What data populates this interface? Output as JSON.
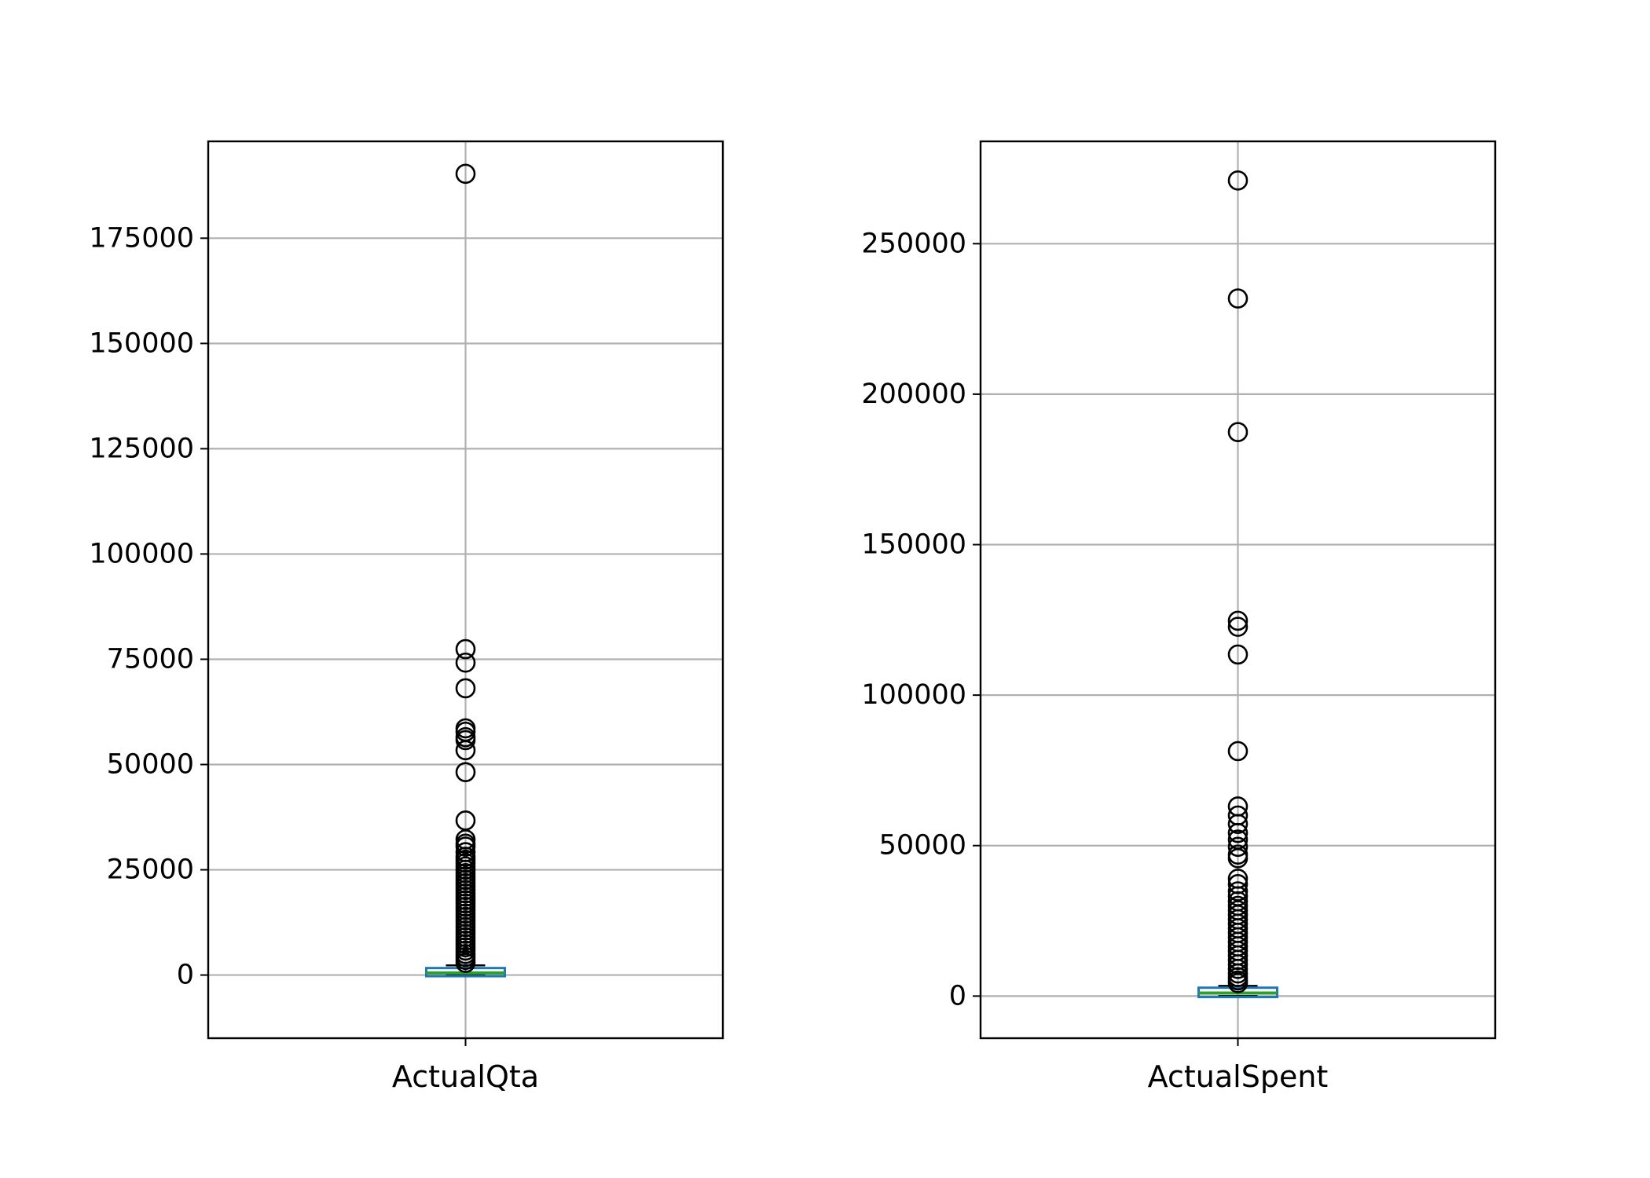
{
  "chart_data": [
    {
      "type": "box",
      "categories": [
        "ActualQta"
      ],
      "ylim": [
        -15000,
        198000
      ],
      "yticks": [
        0,
        25000,
        50000,
        75000,
        100000,
        125000,
        150000,
        175000
      ],
      "yticklabels": [
        "0",
        "25000",
        "50000",
        "75000",
        "100000",
        "125000",
        "150000",
        "175000"
      ],
      "grid": true,
      "box": {
        "min": 0,
        "q1": 100,
        "median": 500,
        "q3": 1100,
        "whisker_high": 2300
      },
      "outliers": [
        190300,
        77400,
        74200,
        68100,
        58600,
        57800,
        56500,
        55800,
        53400,
        48200,
        36700,
        32200,
        31200,
        30500,
        29200,
        28100,
        27400,
        26600,
        25800,
        25000,
        24200,
        23400,
        22600,
        21800,
        21000,
        20200,
        19400,
        18600,
        17800,
        17000,
        16200,
        15400,
        14600,
        13800,
        13000,
        12200,
        11400,
        10600,
        9800,
        9000,
        8200,
        7400,
        6600,
        5800,
        5000,
        4300,
        3600,
        2900
      ]
    },
    {
      "type": "box",
      "categories": [
        "ActualSpent"
      ],
      "ylim": [
        -14000,
        284000
      ],
      "yticks": [
        0,
        50000,
        100000,
        150000,
        200000,
        250000
      ],
      "yticklabels": [
        "0",
        "50000",
        "100000",
        "150000",
        "200000",
        "250000"
      ],
      "grid": true,
      "box": {
        "min": 0,
        "q1": 200,
        "median": 1000,
        "q3": 2000,
        "whisker_high": 3400
      },
      "outliers": [
        271000,
        231800,
        187400,
        124700,
        122700,
        113500,
        81400,
        63000,
        60000,
        57200,
        54200,
        52000,
        49600,
        47000,
        45800,
        39000,
        37200,
        34800,
        33200,
        31500,
        30000,
        28500,
        27000,
        25500,
        24000,
        22500,
        21000,
        19500,
        18000,
        16500,
        15000,
        13500,
        12000,
        10500,
        9000,
        7500,
        6300,
        5200,
        4300
      ]
    }
  ],
  "colors": {
    "box": "#1f77b4",
    "median": "#2ca02c",
    "grid": "#b0b0b0",
    "axes": "#000000",
    "flier": "#000000"
  }
}
